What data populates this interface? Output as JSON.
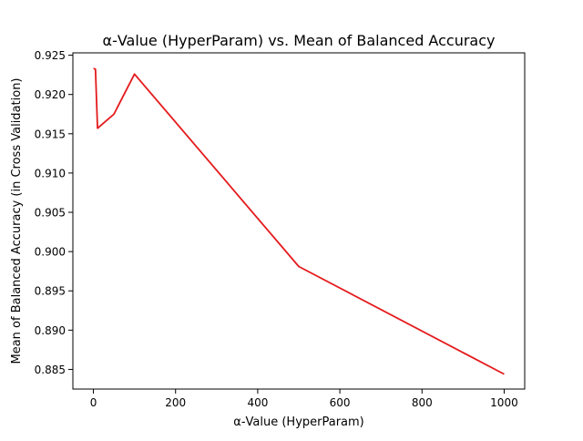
{
  "chart_data": {
    "type": "line",
    "title": "α-Value (HyperParam) vs. Mean of Balanced Accuracy",
    "xlabel": "α-Value (HyperParam)",
    "ylabel": "Mean of Balanced Accuracy (in Cross Validation)",
    "xlim": [
      -50,
      1050
    ],
    "ylim": [
      0.8825,
      0.9253
    ],
    "xticks": [
      0,
      200,
      400,
      600,
      800,
      1000
    ],
    "xtick_labels": [
      "0",
      "200",
      "400",
      "600",
      "800",
      "1000"
    ],
    "yticks": [
      0.885,
      0.89,
      0.895,
      0.9,
      0.905,
      0.91,
      0.915,
      0.92,
      0.925
    ],
    "ytick_labels": [
      "0.885",
      "0.890",
      "0.895",
      "0.900",
      "0.905",
      "0.910",
      "0.915",
      "0.920",
      "0.925"
    ],
    "grid": false,
    "series": [
      {
        "color": "#e41a1c",
        "x": [
          0.1,
          1,
          5,
          10,
          50,
          100,
          500,
          1000
        ],
        "y": [
          0.9233,
          0.9233,
          0.9232,
          0.9157,
          0.9175,
          0.9226,
          0.8981,
          0.8844
        ]
      }
    ]
  }
}
